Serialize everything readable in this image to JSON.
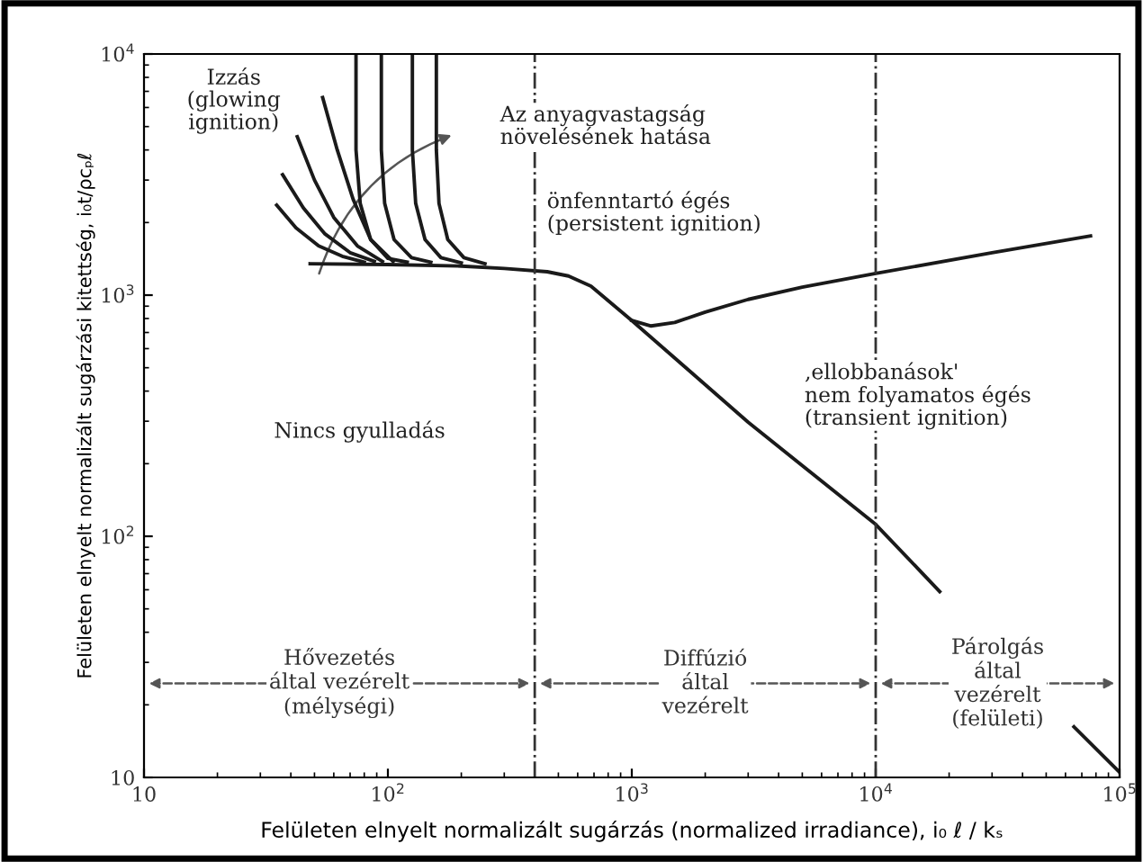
{
  "chart_data": {
    "type": "line",
    "xlabel": "Felületen elnyelt normalizált sugárzás (normalized irradiance), i₀ ℓ / kₛ",
    "ylabel": "Felületen elnyelt normalizált sugárzási kitettség, i₀t/ρcₚℓ",
    "log": "xy",
    "xlim": [
      10,
      100000
    ],
    "ylim": [
      10,
      10000
    ],
    "xticks": [
      10,
      {
        "value": 100,
        "label": "10$^{2}$"
      },
      {
        "value": 1000,
        "label": "10$^{3}$"
      },
      {
        "value": 10000,
        "label": "10$^{4}$"
      },
      {
        "value": 100000,
        "label": "10$^{5}$"
      }
    ],
    "yticks": [
      10,
      {
        "value": 100,
        "label": "10$^{2}$"
      },
      {
        "value": 1000,
        "label": "10$^{3}$"
      },
      {
        "value": 10000,
        "label": "10$^{4}$"
      }
    ],
    "grid": false,
    "marker": "none",
    "line_style": "solid",
    "series": [
      {
        "color": "#1a1a1a",
        "x": [
          48,
          100,
          200,
          300,
          450,
          550,
          680,
          1000,
          3000,
          10000,
          18300
        ],
        "values": [
          1350,
          1340,
          1320,
          1290,
          1250,
          1200,
          1090,
          785,
          297,
          112,
          59
        ]
      },
      {
        "color": "#1a1a1a",
        "x": [
          1000,
          1200,
          1500,
          2000,
          3000,
          5000,
          10000,
          30000,
          76000
        ],
        "values": [
          785,
          745,
          770,
          850,
          960,
          1080,
          1230,
          1500,
          1760
        ]
      },
      {
        "color": "#1a1a1a",
        "x": [
          65000,
          100000
        ],
        "values": [
          16.2,
          10.5
        ]
      },
      {
        "color": "#1a1a1a",
        "x": [
          54,
          62,
          72,
          85,
          105
        ],
        "values": [
          6600,
          4000,
          2500,
          1700,
          1380
        ]
      },
      {
        "color": "#1a1a1a",
        "x": [
          42.5,
          50,
          60,
          75,
          95
        ],
        "values": [
          4540,
          3000,
          2100,
          1600,
          1380
        ]
      },
      {
        "color": "#1a1a1a",
        "x": [
          37,
          45,
          55,
          70,
          88
        ],
        "values": [
          3160,
          2300,
          1800,
          1500,
          1380
        ]
      },
      {
        "color": "#1a1a1a",
        "x": [
          35,
          42,
          52,
          65,
          80
        ],
        "values": [
          2360,
          1900,
          1600,
          1450,
          1370
        ]
      },
      {
        "color": "#1a1a1a",
        "x": [
          74,
          74,
          77,
          85,
          100,
          120
        ],
        "values": [
          10000,
          4000,
          2400,
          1700,
          1420,
          1370
        ]
      },
      {
        "color": "#1a1a1a",
        "x": [
          94,
          94,
          97,
          106,
          125,
          150
        ],
        "values": [
          10000,
          4000,
          2400,
          1700,
          1430,
          1370
        ]
      },
      {
        "color": "#1a1a1a",
        "x": [
          126,
          126,
          130,
          142,
          165,
          200
        ],
        "values": [
          10000,
          4000,
          2400,
          1700,
          1430,
          1360
        ]
      },
      {
        "color": "#1a1a1a",
        "x": [
          158,
          158,
          162,
          176,
          205,
          250
        ],
        "values": [
          10000,
          4000,
          2400,
          1700,
          1430,
          1350
        ]
      }
    ],
    "ref_lines": [
      {
        "axis": "x",
        "value": 400,
        "color": "#333333",
        "line_style": "dashdot"
      },
      {
        "axis": "x",
        "value": 10000,
        "color": "#333333",
        "line_style": "dashdot"
      }
    ],
    "annotations": [
      "Hővezetés\náltal vezérelt\n(mélységi)",
      "Diffúzió\náltal\nvezérelt",
      "Párolgás\náltal\nvezérelt\n(felületi)",
      "Izzás\n(glowing\nignition)",
      "Az anyagvastagság\nnövelésének hatása",
      "önfenntartó égés\n(persistent ignition)",
      "‚ellobbanások'\nnem folyamatos égés\n(transient ignition)",
      "Nincs gyulladás"
    ]
  }
}
